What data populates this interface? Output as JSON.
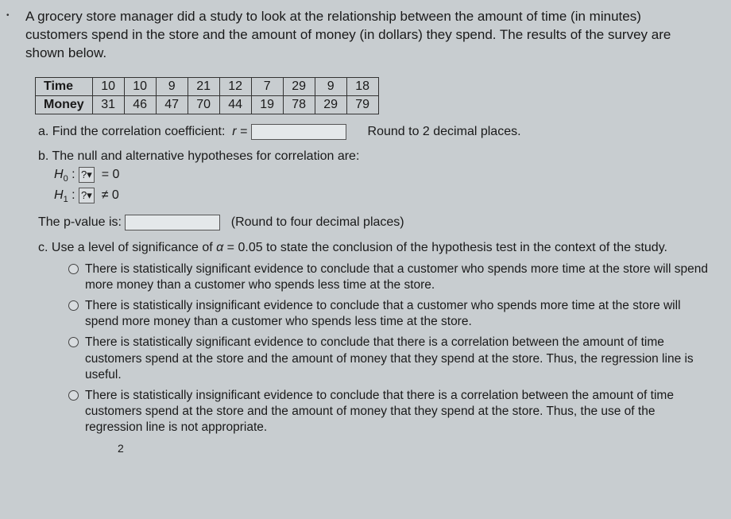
{
  "intro": "A grocery store manager did a study to look at the relationship between the amount of time (in minutes) customers spend in the store and the amount of money (in dollars) they spend. The results of the survey are shown below.",
  "table": {
    "rows": [
      {
        "label": "Time",
        "cells": [
          "10",
          "10",
          "9",
          "21",
          "12",
          "7",
          "29",
          "9",
          "18"
        ]
      },
      {
        "label": "Money",
        "cells": [
          "31",
          "46",
          "47",
          "70",
          "44",
          "19",
          "78",
          "29",
          "79"
        ]
      }
    ]
  },
  "a": {
    "prefix": "a. Find the correlation coefficient:",
    "rvar": "r",
    "equals": "=",
    "suffix": "Round to 2 decimal places."
  },
  "b": {
    "prefix": "b. The null and alternative hypotheses for correlation are:",
    "h0_sym": "H",
    "h0_sub": "0",
    "h0_colon": ":",
    "h0_sel": "?",
    "h0_eq": "= 0",
    "h1_sym": "H",
    "h1_sub": "1",
    "h1_colon": ":",
    "h1_sel": "?",
    "h1_eq": "≠ 0",
    "pv_label": "The p-value is:",
    "pv_note": "(Round to four decimal places)"
  },
  "c": {
    "prefix_a": "c. Use a level of significance of ",
    "alpha": "α",
    "prefix_b": " = 0.05 to state the conclusion of the hypothesis test in the context of the study.",
    "opts": [
      "There is statistically significant evidence to conclude that a customer who spends more time at the store will spend more money than a customer who spends less time at the store.",
      "There is statistically insignificant evidence to conclude that a customer who spends more time at the store will spend more money than a customer who spends less time at the store.",
      "There is statistically significant evidence to conclude that there is a correlation between the amount of time customers spend at the store and the amount of money that they spend at the store. Thus, the regression line is useful.",
      "There is statistically insignificant evidence to conclude that there is a correlation between the amount of time customers spend at the store and the amount of money that they spend at the store. Thus, the use of the regression line is not appropriate."
    ]
  },
  "footnum": "2"
}
